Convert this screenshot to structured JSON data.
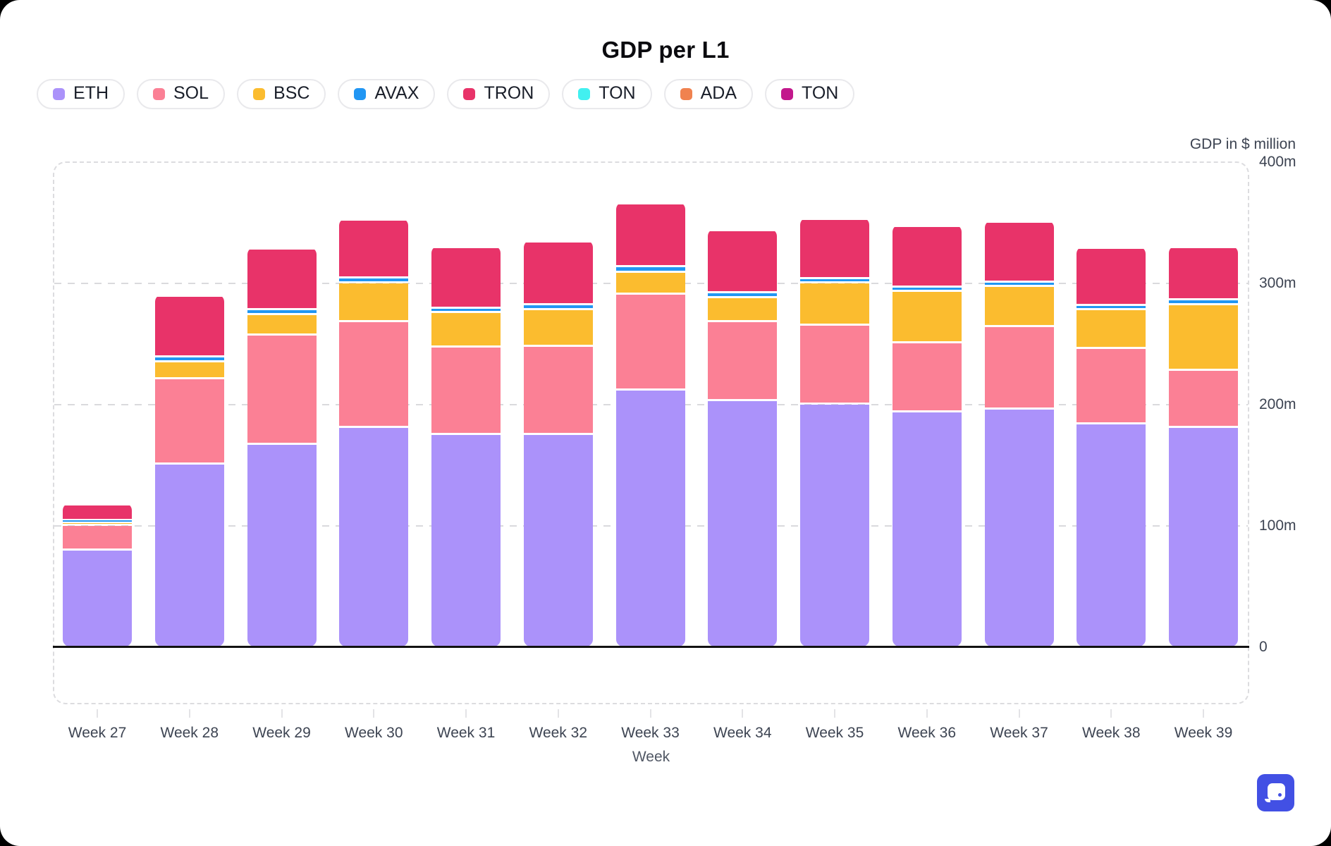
{
  "title": "GDP per L1",
  "legend": [
    {
      "label": "ETH",
      "color": "#ab92fa"
    },
    {
      "label": "SOL",
      "color": "#fb8095"
    },
    {
      "label": "BSC",
      "color": "#fbbc2f"
    },
    {
      "label": "AVAX",
      "color": "#2196f3"
    },
    {
      "label": "TRON",
      "color": "#e83369"
    },
    {
      "label": "TON",
      "color": "#42f0f0"
    },
    {
      "label": "ADA",
      "color": "#f0824f"
    },
    {
      "label": "TON",
      "color": "#c2188c"
    }
  ],
  "y_axis": {
    "title": "GDP in $ million",
    "ticks": [
      {
        "label": "400m",
        "value": 400
      },
      {
        "label": "300m",
        "value": 300
      },
      {
        "label": "200m",
        "value": 200
      },
      {
        "label": "100m",
        "value": 100
      },
      {
        "label": "0",
        "value": 0
      }
    ]
  },
  "x_axis": {
    "title": "Week"
  },
  "chart_data": {
    "type": "bar",
    "stacked": true,
    "title": "GDP per L1",
    "xlabel": "Week",
    "ylabel": "GDP in $ million",
    "ylim": [
      0,
      400
    ],
    "unit": "million USD",
    "grid": "dashed horizontal",
    "legend_position": "top-left",
    "categories": [
      "Week 27",
      "Week 28",
      "Week 29",
      "Week 30",
      "Week 31",
      "Week 32",
      "Week 33",
      "Week 34",
      "Week 35",
      "Week 36",
      "Week 37",
      "Week 38",
      "Week 39"
    ],
    "series": [
      {
        "name": "ETH",
        "color": "#ab92fa",
        "values": [
          81,
          152,
          168,
          182,
          176,
          176,
          213,
          204,
          201,
          195,
          197,
          185,
          182
        ]
      },
      {
        "name": "SOL",
        "color": "#fb8095",
        "values": [
          20,
          70,
          90,
          87,
          72,
          73,
          79,
          65,
          65,
          57,
          68,
          62,
          47
        ]
      },
      {
        "name": "BSC",
        "color": "#fbbc2f",
        "values": [
          2,
          14,
          17,
          32,
          29,
          30,
          18,
          20,
          35,
          42,
          33,
          32,
          54
        ]
      },
      {
        "name": "AVAX",
        "color": "#2196f3",
        "values": [
          2,
          4,
          4,
          4,
          3,
          4,
          4.5,
          4,
          3.5,
          3.5,
          4,
          3.5,
          4
        ]
      },
      {
        "name": "TRON",
        "color": "#e83369",
        "values": [
          13,
          50,
          50,
          48,
          50,
          52,
          52,
          51,
          49,
          50,
          49,
          47,
          43
        ]
      },
      {
        "name": "TON",
        "color": "#42f0f0",
        "values": [
          0,
          0,
          0,
          0,
          0,
          0,
          0,
          0,
          0,
          0,
          0,
          0,
          0
        ]
      },
      {
        "name": "ADA",
        "color": "#f0824f",
        "values": [
          0,
          0,
          0,
          0,
          0,
          0,
          0,
          0,
          0,
          0,
          0,
          0,
          0
        ]
      },
      {
        "name": "TON",
        "color": "#c2188c",
        "values": [
          0,
          0,
          0,
          0,
          0,
          0,
          0,
          0,
          0,
          0,
          0,
          0,
          0
        ]
      }
    ]
  },
  "widget_button": {
    "name": "chat-widget"
  }
}
